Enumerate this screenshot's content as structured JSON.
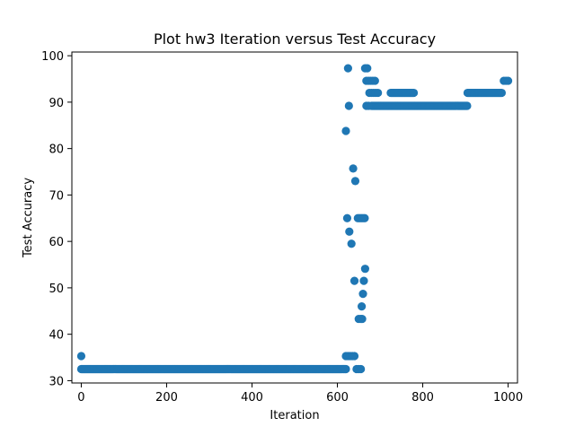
{
  "chart_data": {
    "type": "scatter",
    "title": "Plot hw3 Iteration versus Test Accuracy",
    "xlabel": "Iteration",
    "ylabel": "Test Accuracy",
    "xlim": [
      -22,
      1022
    ],
    "ylim": [
      29.5,
      100.8
    ],
    "xticks": [
      0,
      200,
      400,
      600,
      800,
      1000
    ],
    "yticks": [
      30,
      40,
      50,
      60,
      70,
      80,
      90,
      100
    ],
    "grid": false,
    "legend": "none",
    "marker_color": "#1f77b4",
    "marker": "circle",
    "series": [
      {
        "description_values": "Iteration (x) vs Test Accuracy (y), one point per iteration",
        "segments": [
          {
            "x_range": [
              0,
              620
            ],
            "y": 32.5,
            "note_level": "baseline"
          },
          {
            "x_range": [
              680,
              905
            ],
            "y": 89.2,
            "note_level": "plateau"
          },
          {
            "x_range": [
              725,
              780
            ],
            "y": 92.0,
            "note_level": "upper"
          },
          {
            "x_range": [
              905,
              985
            ],
            "y": 92.0,
            "note_level": "upper"
          }
        ],
        "points": [
          [
            0,
            35.3
          ],
          [
            620,
            35.3
          ],
          [
            625,
            35.3
          ],
          [
            630,
            35.3
          ],
          [
            635,
            35.3
          ],
          [
            640,
            35.3
          ],
          [
            645,
            32.5
          ],
          [
            650,
            32.5
          ],
          [
            655,
            32.5
          ],
          [
            620,
            83.8
          ],
          [
            625,
            97.3
          ],
          [
            627,
            89.2
          ],
          [
            623,
            65.0
          ],
          [
            628,
            62.1
          ],
          [
            633,
            59.5
          ],
          [
            637,
            75.7
          ],
          [
            642,
            73.0
          ],
          [
            640,
            51.5
          ],
          [
            648,
            65.0
          ],
          [
            652,
            65.0
          ],
          [
            656,
            65.0
          ],
          [
            660,
            65.0
          ],
          [
            664,
            65.0
          ],
          [
            650,
            43.3
          ],
          [
            655,
            43.3
          ],
          [
            658,
            43.3
          ],
          [
            657,
            46.0
          ],
          [
            660,
            48.7
          ],
          [
            662,
            51.5
          ],
          [
            665,
            54.1
          ],
          [
            665,
            97.3
          ],
          [
            670,
            97.3
          ],
          [
            668,
            94.6
          ],
          [
            673,
            94.6
          ],
          [
            678,
            94.6
          ],
          [
            683,
            94.6
          ],
          [
            688,
            94.6
          ],
          [
            668,
            89.2
          ],
          [
            673,
            89.2
          ],
          [
            675,
            92.0
          ],
          [
            680,
            92.0
          ],
          [
            685,
            92.0
          ],
          [
            690,
            92.0
          ],
          [
            695,
            92.0
          ],
          [
            990,
            94.6
          ],
          [
            995,
            94.6
          ],
          [
            1000,
            94.6
          ]
        ]
      }
    ]
  }
}
